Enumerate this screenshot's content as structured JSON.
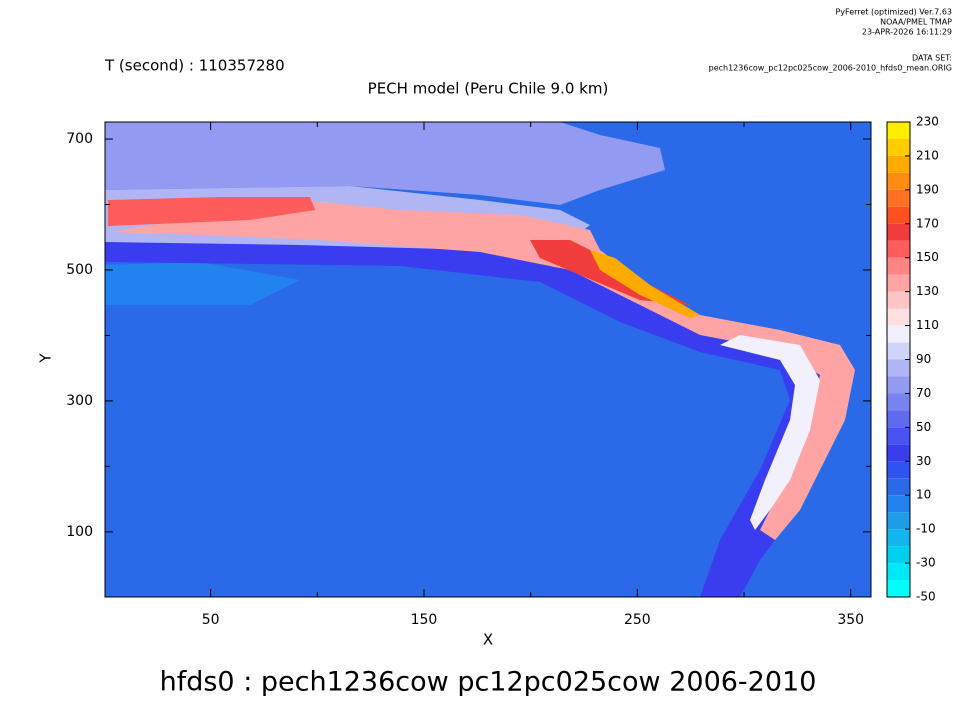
{
  "chart_data": {
    "type": "heatmap",
    "header": [
      "PyFerret (optimized) Ver.7.63",
      "NOAA/PMEL TMAP",
      "23-APR-2026 16:11:29"
    ],
    "dataset_label": "DATA SET:",
    "dataset": "pech1236cow_pc12pc025cow_2006-2010_hfds0_mean.ORIG",
    "subtitle": "T (second) : 110357280",
    "title": "PECH model (Peru Chile 9.0 km)",
    "xlabel": "X",
    "ylabel": "Y",
    "caption": "hfds0 : pech1236cow pc12pc025cow 2006-2010",
    "xlim": [
      0.5,
      359.5
    ],
    "xticks": [
      50,
      150,
      250,
      350
    ],
    "xminor": [
      100,
      200,
      300
    ],
    "ylim": [
      0.5,
      726
    ],
    "yticks": [
      100,
      300,
      500,
      700
    ],
    "yminor": [
      200,
      400,
      600
    ],
    "colorbar": {
      "levels": [
        -50,
        -40,
        -30,
        -20,
        -10,
        0,
        10,
        20,
        30,
        40,
        50,
        60,
        70,
        80,
        90,
        100,
        110,
        120,
        130,
        140,
        150,
        160,
        170,
        180,
        190,
        200,
        210,
        220,
        230
      ],
      "colors": [
        "#00ffff",
        "#00e8f6",
        "#00d0ee",
        "#10b6ec",
        "#1e9ce8",
        "#2282f0",
        "#2a6ae8",
        "#3052f0",
        "#3a3cf0",
        "#4a52f0",
        "#606af0",
        "#7882f0",
        "#929af2",
        "#b0b6f4",
        "#d0d4f8",
        "#f2f0fc",
        "#ffe0e2",
        "#ffc4c4",
        "#ffa4a4",
        "#ff8484",
        "#ff5c5c",
        "#f03c3c",
        "#ff5020",
        "#ff7020",
        "#ff8c10",
        "#ffaa00",
        "#ffcc00",
        "#ffee00"
      ],
      "ticks": [
        -50,
        -30,
        -10,
        10,
        30,
        50,
        70,
        90,
        110,
        130,
        150,
        170,
        190,
        210,
        230
      ]
    }
  }
}
